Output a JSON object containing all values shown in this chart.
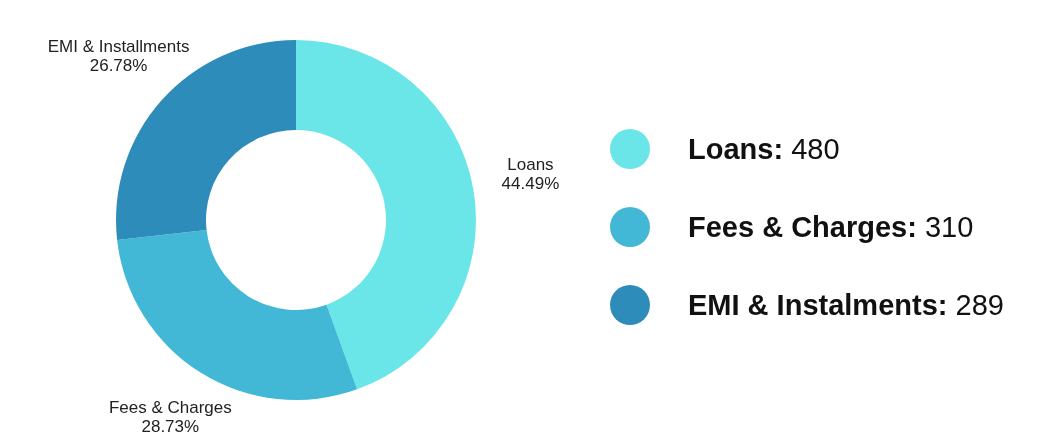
{
  "chart_data": {
    "type": "donut",
    "categories": [
      "Loans",
      "Fees & Charges",
      "EMI & Installments"
    ],
    "values": [
      44.49,
      28.73,
      26.78
    ],
    "colors": [
      "#6ae5e8",
      "#42b8d6",
      "#2e8cba"
    ],
    "value_labels": [
      "44.49%",
      "28.73%",
      "26.78%"
    ],
    "annotations": [
      "Loans:",
      "480",
      "Fees & Charges:",
      "310",
      "EMI & Instalments:",
      "289"
    ]
  }
}
